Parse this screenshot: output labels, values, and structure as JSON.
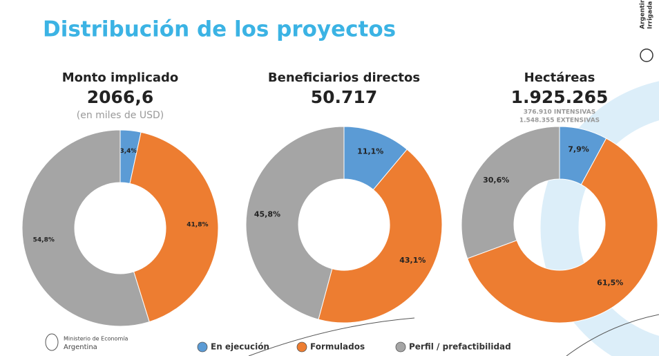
{
  "title": "Distribución de los proyectos",
  "brand": [
    "Argentina",
    "Irrigada"
  ],
  "footer": [
    "Ministerio de Economía",
    "Argentina"
  ],
  "legend": {
    "labels": [
      "En ejecución",
      "Formulados",
      "Perfil / prefactibilidad"
    ],
    "colors": [
      "#5b9bd5",
      "#ed7d31",
      "#a5a5a5"
    ]
  },
  "chart_data": [
    {
      "type": "pie",
      "donut": true,
      "title": "Monto implicado",
      "total": "2066,6",
      "subtitle": "(en miles de USD)",
      "values": [
        3.4,
        41.8,
        54.8
      ],
      "value_labels": [
        "3,4%",
        "41,8%",
        "54,8%"
      ]
    },
    {
      "type": "pie",
      "donut": true,
      "title": "Beneficiarios directos",
      "total": "50.717",
      "values": [
        11.1,
        43.1,
        45.8
      ],
      "value_labels": [
        "11,1%",
        "43,1%",
        "45,8%"
      ]
    },
    {
      "type": "pie",
      "donut": true,
      "title": "Hectáreas",
      "total": "1.925.265",
      "notes": [
        "376.910  INTENSIVAS",
        "1.548.355  EXTENSIVAS"
      ],
      "values": [
        7.9,
        61.5,
        30.6
      ],
      "value_labels": [
        "7,9%",
        "61,5%",
        "30,6%"
      ]
    }
  ]
}
